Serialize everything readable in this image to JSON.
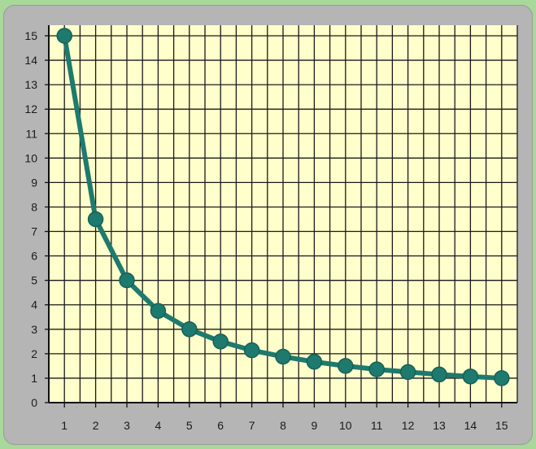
{
  "chart_data": {
    "type": "line",
    "x": [
      1,
      2,
      3,
      4,
      5,
      6,
      7,
      8,
      9,
      10,
      11,
      12,
      13,
      14,
      15
    ],
    "values": [
      15,
      7.5,
      5,
      3.75,
      3,
      2.5,
      2.14,
      1.88,
      1.67,
      1.5,
      1.36,
      1.25,
      1.15,
      1.07,
      1
    ],
    "x_ticks": [
      "1",
      "2",
      "3",
      "4",
      "5",
      "6",
      "7",
      "8",
      "9",
      "10",
      "11",
      "12",
      "13",
      "14",
      "15"
    ],
    "y_ticks": [
      "0",
      "1",
      "2",
      "3",
      "4",
      "5",
      "6",
      "7",
      "8",
      "9",
      "10",
      "11",
      "12",
      "13",
      "14",
      "15"
    ],
    "xlim": [
      0.5,
      15.5
    ],
    "ylim": [
      0,
      15
    ],
    "grid": true,
    "colors": {
      "line": "#1e7a6e",
      "point": "#1e7a6e",
      "plot_bg": "#ffffcc",
      "grid": "#1a1a1a",
      "frame": "#b5b5b5"
    }
  }
}
